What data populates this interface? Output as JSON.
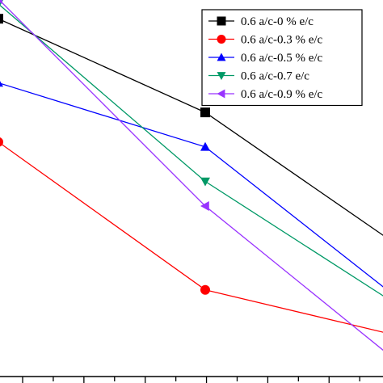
{
  "chart_data": {
    "type": "line",
    "title": "",
    "xlabel": "",
    "ylabel": "",
    "x": [
      0,
      1,
      2
    ],
    "xlim": [
      0,
      2
    ],
    "ylim": [
      0,
      100
    ],
    "grid": false,
    "legend_position": "top-right",
    "series": [
      {
        "name": "0.6 a/c-0 % e/c",
        "color": "#000000",
        "marker": "square",
        "values": [
          88,
          69,
          40
        ]
      },
      {
        "name": "0.6 a/c-0.3 % e/c",
        "color": "#ff0000",
        "marker": "circle",
        "values": [
          63,
          33,
          23
        ]
      },
      {
        "name": "0.6 a/c-0.5 % e/c",
        "color": "#0000ff",
        "marker": "triangle-up",
        "values": [
          75,
          62,
          29
        ]
      },
      {
        "name": "0.6 a/c-0.7 e/c",
        "color": "#009966",
        "marker": "triangle-down",
        "values": [
          91,
          55,
          28
        ]
      },
      {
        "name": "0.6 a/c-0.9 % e/c",
        "color": "#9933ff",
        "marker": "triangle-left",
        "values": [
          92,
          50,
          16
        ]
      }
    ]
  }
}
